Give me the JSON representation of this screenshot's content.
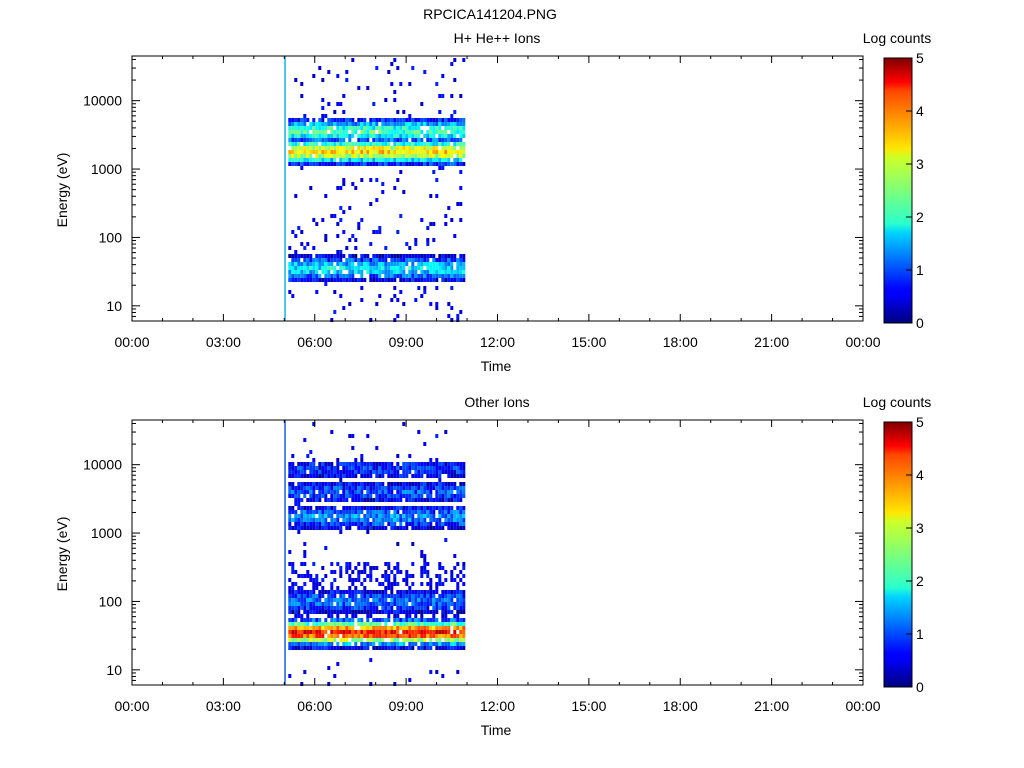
{
  "figure": {
    "title": "RPCICA141204.PNG"
  },
  "panels": [
    {
      "id": "top",
      "title": "H+ He++ Ions",
      "ylabel": "Energy (eV)",
      "xlabel": "Time",
      "colorbar_label": "Log counts"
    },
    {
      "id": "bottom",
      "title": "Other Ions",
      "ylabel": "Energy (eV)",
      "xlabel": "Time",
      "colorbar_label": "Log counts"
    }
  ],
  "chart_data": [
    {
      "type": "heatmap",
      "title": "H+ He++ Ions",
      "xlabel": "Time",
      "ylabel": "Energy (eV)",
      "x_ticks": [
        "00:00",
        "03:00",
        "06:00",
        "09:00",
        "12:00",
        "15:00",
        "18:00",
        "21:00",
        "00:00"
      ],
      "xlim_hours": [
        0,
        24
      ],
      "y_scale": "log",
      "y_ticks": [
        "10",
        "100",
        "1000",
        "10000"
      ],
      "ylim": [
        6,
        45000
      ],
      "colorbar": {
        "label": "Log counts",
        "range": [
          0,
          5
        ],
        "ticks": [
          "0",
          "1",
          "2",
          "3",
          "4",
          "5"
        ],
        "colormap": "jet"
      },
      "data_window_hours": [
        5.0,
        10.9
      ],
      "bands": [
        {
          "energy_eV": 1800,
          "log_counts": 3.3
        },
        {
          "energy_eV": 3600,
          "log_counts": 2.2
        },
        {
          "energy_eV": 35,
          "log_counts": 1.8
        }
      ]
    },
    {
      "type": "heatmap",
      "title": "Other Ions",
      "xlabel": "Time",
      "ylabel": "Energy (eV)",
      "x_ticks": [
        "00:00",
        "03:00",
        "06:00",
        "09:00",
        "12:00",
        "15:00",
        "18:00",
        "21:00",
        "00:00"
      ],
      "xlim_hours": [
        0,
        24
      ],
      "y_scale": "log",
      "y_ticks": [
        "10",
        "100",
        "1000",
        "10000"
      ],
      "ylim": [
        6,
        45000
      ],
      "colorbar": {
        "label": "Log counts",
        "range": [
          0,
          5
        ],
        "ticks": [
          "0",
          "1",
          "2",
          "3",
          "4",
          "5"
        ],
        "colormap": "jet"
      },
      "data_window_hours": [
        5.0,
        10.9
      ],
      "bands": [
        {
          "energy_eV": 35,
          "log_counts": 4.3
        },
        {
          "energy_eV": 100,
          "log_counts": 1.2
        },
        {
          "energy_eV": 1700,
          "log_counts": 1.3
        },
        {
          "energy_eV": 4000,
          "log_counts": 1.0
        },
        {
          "energy_eV": 8500,
          "log_counts": 0.8
        }
      ]
    }
  ]
}
